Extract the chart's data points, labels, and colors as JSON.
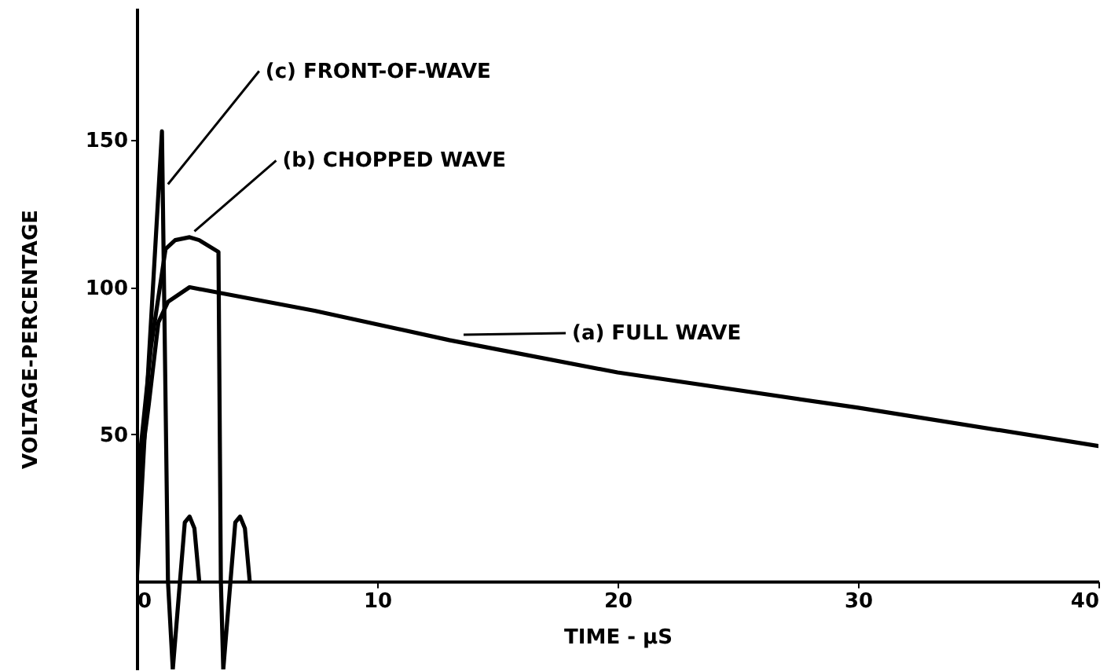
{
  "chart_data": {
    "type": "line",
    "xlabel": "TIME - μS",
    "ylabel": "VOLTAGE-PERCENTAGE",
    "xlim": [
      0,
      40
    ],
    "ylim": [
      -30,
      195
    ],
    "xticks": [
      0,
      10,
      20,
      30,
      40
    ],
    "yticks": [
      50,
      100,
      150
    ],
    "grid": false,
    "line_style": "solid",
    "marker": "none",
    "series": [
      {
        "color": "#000000",
        "x": [
          0,
          0.1,
          0.5,
          0.9,
          1.3,
          2.2,
          3.5,
          7.4,
          13,
          20,
          30,
          40
        ],
        "values": [
          0,
          35,
          60,
          88,
          95,
          100,
          98,
          92,
          82,
          71,
          59,
          46
        ]
      },
      {
        "color": "#000000",
        "x": [
          0,
          0.1,
          0.6,
          1.2,
          1.6,
          2.2,
          2.6,
          3.4,
          3.5,
          3.6,
          4.1,
          4.3,
          4.5,
          4.7
        ],
        "values": [
          0,
          40,
          80,
          113,
          116,
          117,
          116,
          112,
          0,
          -30,
          20,
          22,
          18,
          0
        ]
      },
      {
        "color": "#000000",
        "x": [
          0,
          0.5,
          1.05,
          1.3,
          1.5,
          2.0,
          2.2,
          2.4,
          2.6
        ],
        "values": [
          0,
          75,
          153,
          0,
          -30,
          20,
          22,
          18,
          0
        ]
      }
    ],
    "annotations": [
      {
        "text": "(c) FRONT-OF-WAVE",
        "x": 1.3,
        "y": 135
      },
      {
        "text": "(b) CHOPPED WAVE",
        "x": 2.4,
        "y": 119
      },
      "(a) FULL WAVE"
    ]
  }
}
